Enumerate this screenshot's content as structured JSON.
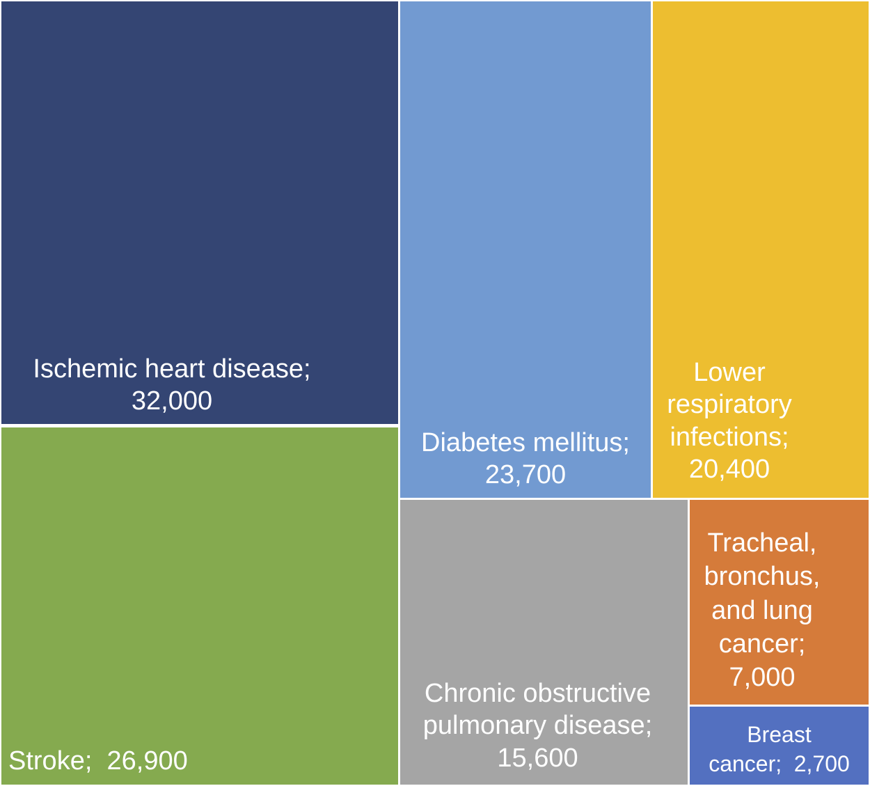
{
  "chart_data": {
    "type": "treemap",
    "title": "",
    "items": [
      {
        "label": "Ischemic heart disease;",
        "value_text": "32,000",
        "value": 32000,
        "color": "#344573"
      },
      {
        "label": "Stroke;",
        "value_text": "26,900",
        "value": 26900,
        "color": "#85AA4F"
      },
      {
        "label": "Diabetes mellitus;",
        "value_text": "23,700",
        "value": 23700,
        "color": "#729AD1"
      },
      {
        "label": "Lower respiratory infections;",
        "value_text": "20,400",
        "value": 20400,
        "color": "#EDBE30"
      },
      {
        "label": "Chronic obstructive pulmonary disease;",
        "value_text": "15,600",
        "value": 15600,
        "color": "#A5A5A5"
      },
      {
        "label": "Tracheal, bronchus, and lung cancer;",
        "value_text": "7,000",
        "value": 7000,
        "color": "#D57B3A"
      },
      {
        "label": "Breast cancer;",
        "value_text": "2,700",
        "value": 2700,
        "color": "#5370C0"
      }
    ]
  }
}
